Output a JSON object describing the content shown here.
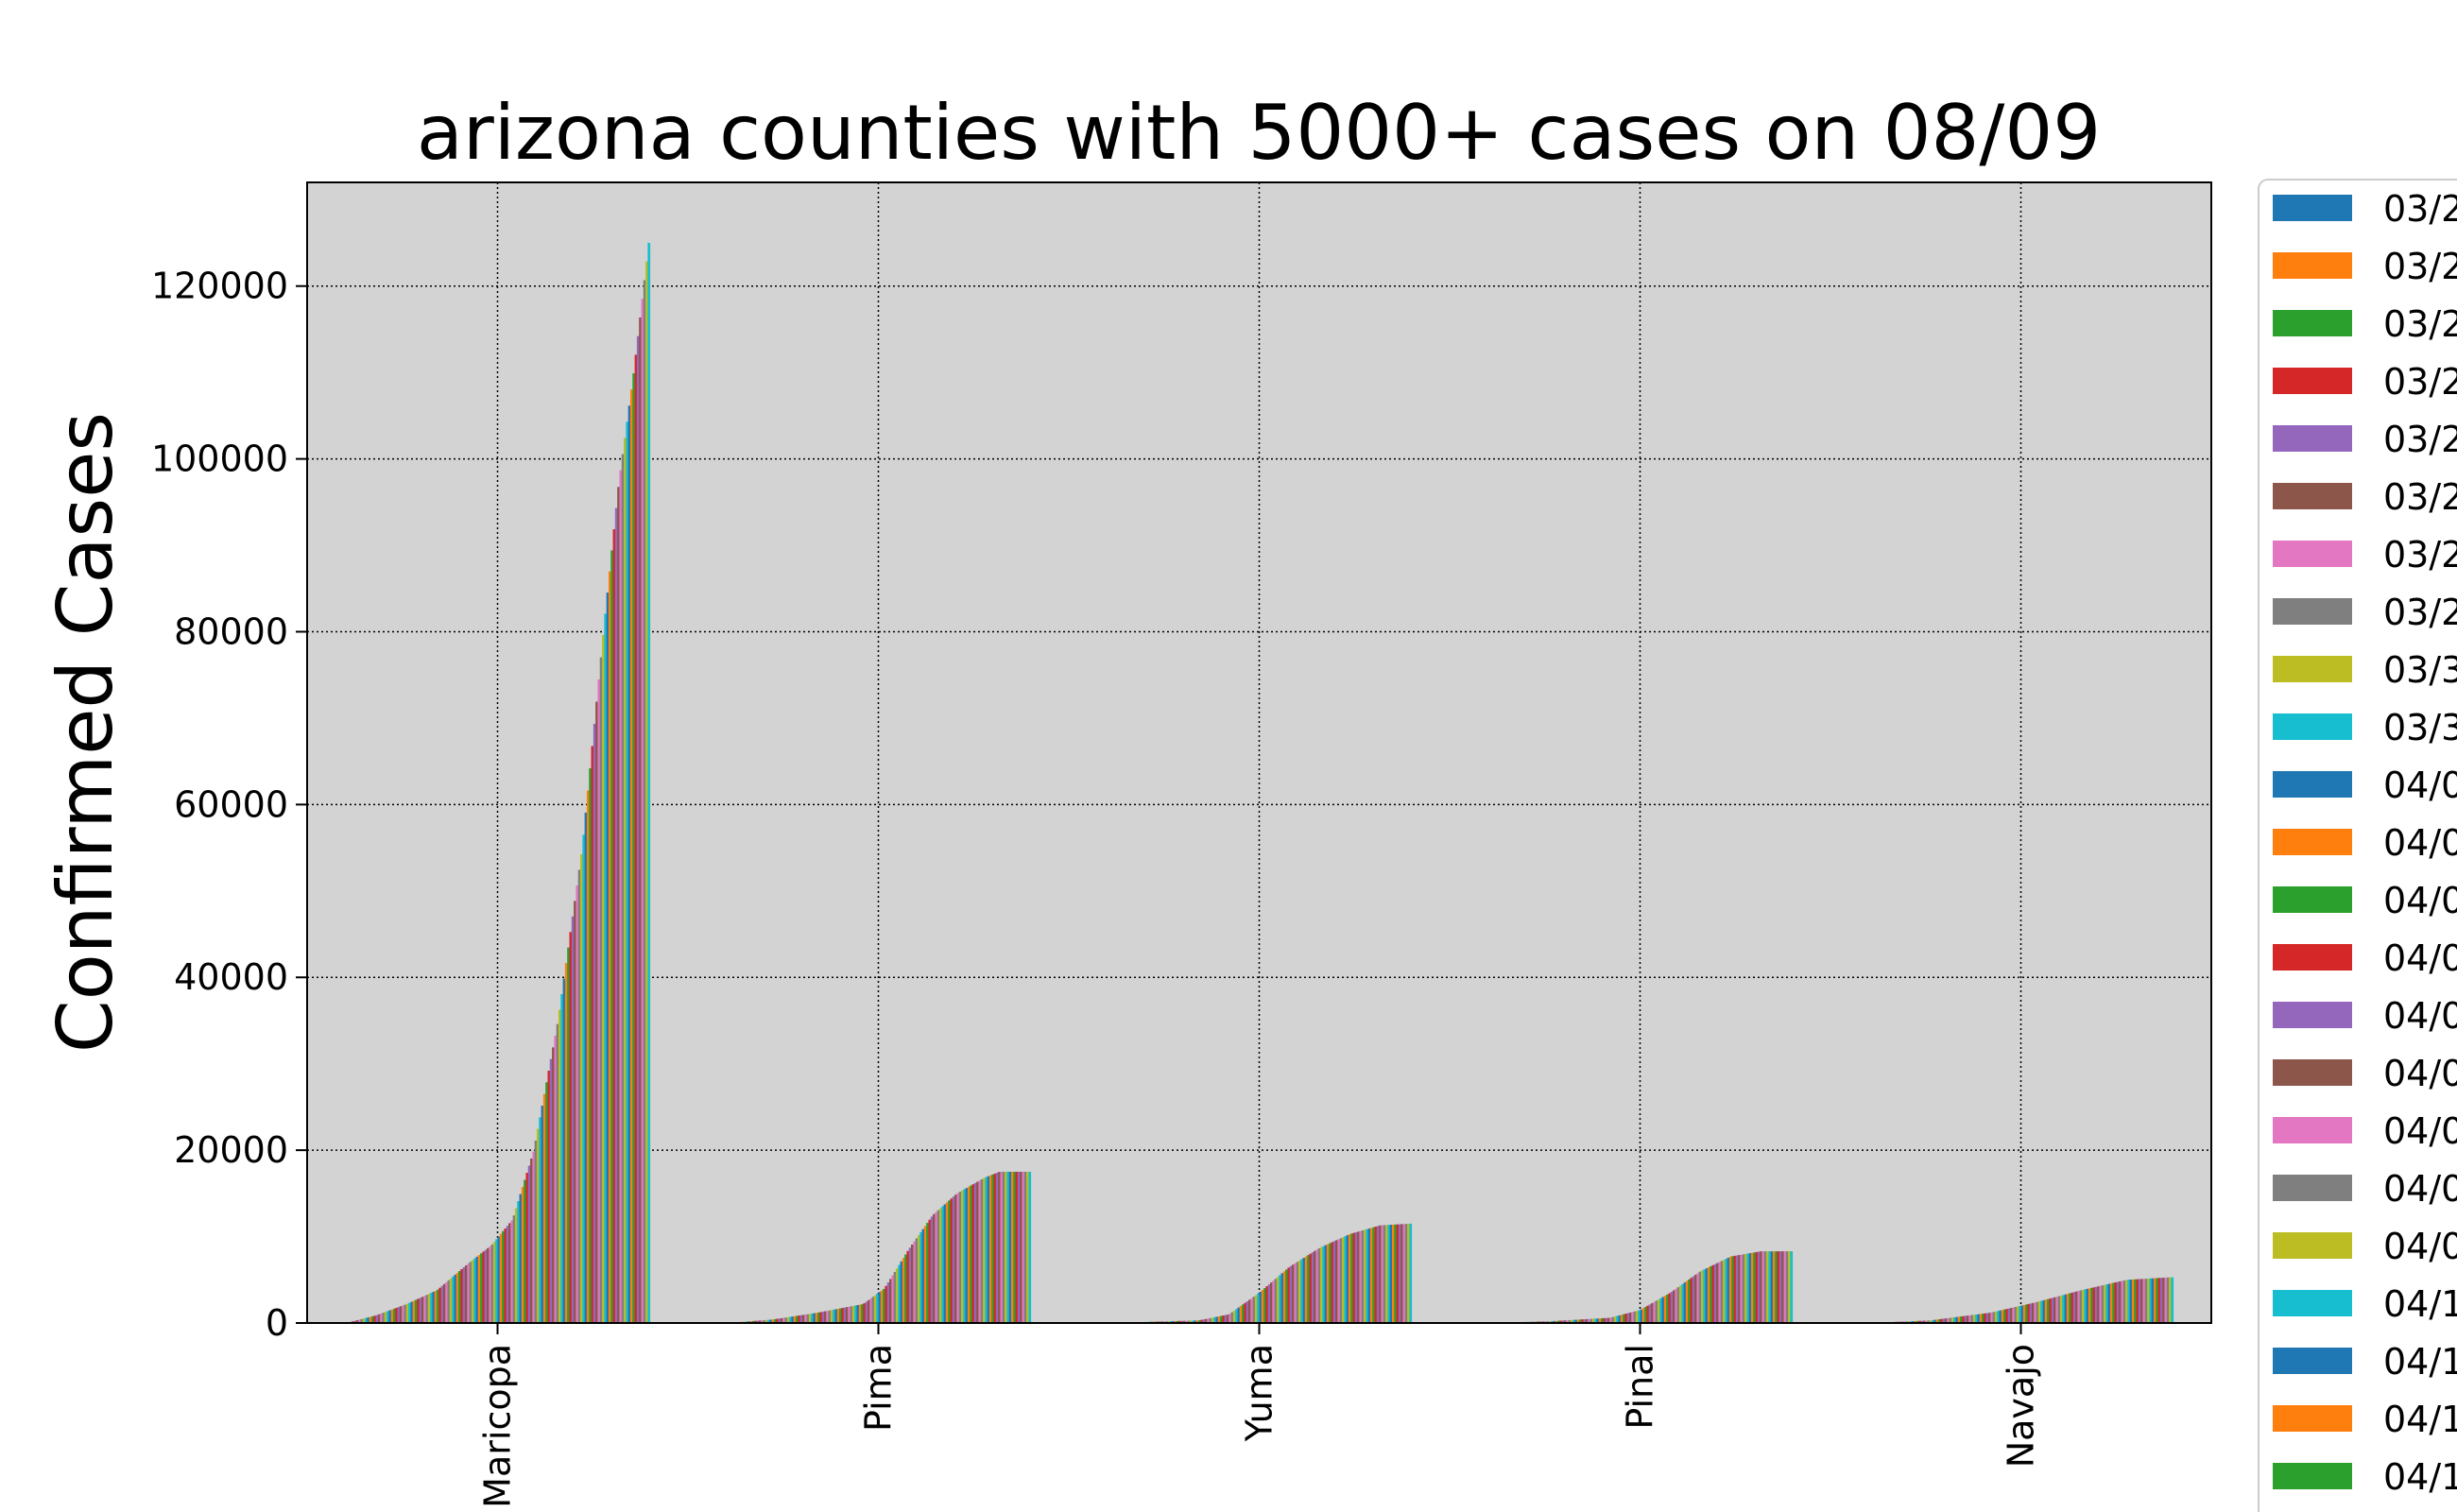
{
  "chart_data": {
    "type": "bar",
    "title": "arizona counties with 5000+ cases on 08/09",
    "xlabel": "",
    "ylabel": "Confirmed Cases",
    "ylim": [
      0,
      132000
    ],
    "yticks": [
      0,
      20000,
      40000,
      60000,
      80000,
      100000,
      120000
    ],
    "ytick_labels": [
      "0",
      "20000",
      "40000",
      "60000",
      "80000",
      "100000",
      "120000"
    ],
    "categories": [
      "Maricopa",
      "Pima",
      "Yuma",
      "Pinal",
      "Navajo"
    ],
    "grid": true,
    "legend_position": "right",
    "series_colors": [
      "#1f77b4",
      "#ff7f0e",
      "#2ca02c",
      "#d62728",
      "#9467bd",
      "#8c564b",
      "#e377c2",
      "#7f7f7f",
      "#bcbd22",
      "#17becf"
    ],
    "legend_labels": [
      "03/2",
      "03/2",
      "03/2",
      "03/2",
      "03/2",
      "03/2",
      "03/2",
      "03/2",
      "03/3",
      "03/3",
      "04/0",
      "04/0",
      "04/0",
      "04/0",
      "04/0",
      "04/0",
      "04/0",
      "04/0",
      "04/0",
      "04/1",
      "04/1",
      "04/1",
      "04/1"
    ],
    "county_profiles": [
      {
        "name": "Maricopa",
        "points": [
          [
            0,
            0
          ],
          [
            10,
            900
          ],
          [
            20,
            2200
          ],
          [
            30,
            3800
          ],
          [
            40,
            6800
          ],
          [
            48,
            9000
          ],
          [
            55,
            12000
          ],
          [
            62,
            20000
          ],
          [
            70,
            35000
          ],
          [
            78,
            55000
          ],
          [
            85,
            80000
          ],
          [
            90,
            97000
          ],
          [
            95,
            110000
          ],
          [
            100,
            125000
          ]
        ]
      },
      {
        "name": "Pima",
        "points": [
          [
            0,
            0
          ],
          [
            15,
            400
          ],
          [
            30,
            1200
          ],
          [
            45,
            2200
          ],
          [
            52,
            4000
          ],
          [
            60,
            8500
          ],
          [
            68,
            12500
          ],
          [
            76,
            15000
          ],
          [
            85,
            16800
          ],
          [
            90,
            17500
          ],
          [
            100,
            17500
          ]
        ]
      },
      {
        "name": "Yuma",
        "points": [
          [
            0,
            0
          ],
          [
            30,
            300
          ],
          [
            40,
            1000
          ],
          [
            50,
            3500
          ],
          [
            60,
            6500
          ],
          [
            70,
            8700
          ],
          [
            80,
            10300
          ],
          [
            90,
            11300
          ],
          [
            100,
            11500
          ]
        ]
      },
      {
        "name": "Pinal",
        "points": [
          [
            0,
            0
          ],
          [
            20,
            200
          ],
          [
            40,
            600
          ],
          [
            50,
            1500
          ],
          [
            60,
            3500
          ],
          [
            70,
            6000
          ],
          [
            80,
            7700
          ],
          [
            90,
            8300
          ],
          [
            100,
            8300
          ]
        ]
      },
      {
        "name": "Navajo",
        "points": [
          [
            0,
            0
          ],
          [
            20,
            300
          ],
          [
            40,
            1200
          ],
          [
            55,
            2400
          ],
          [
            70,
            3800
          ],
          [
            85,
            5000
          ],
          [
            100,
            5300
          ]
        ]
      }
    ]
  }
}
